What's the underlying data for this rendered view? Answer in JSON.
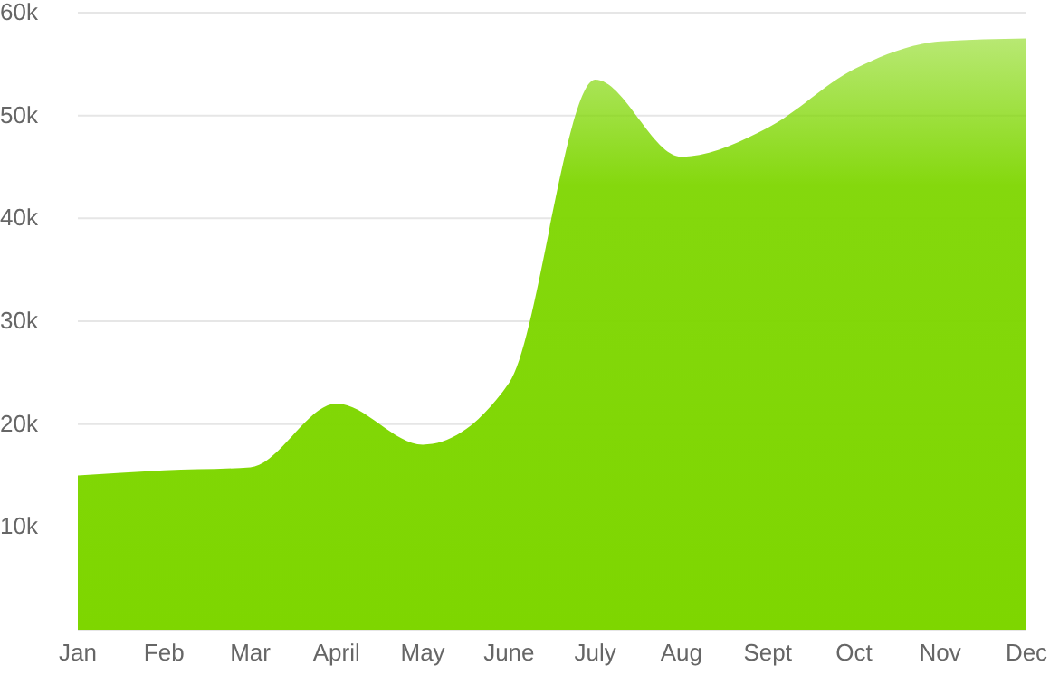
{
  "chart_data": {
    "type": "area",
    "categories": [
      "Jan",
      "Feb",
      "Mar",
      "April",
      "May",
      "June",
      "July",
      "Aug",
      "Sept",
      "Oct",
      "Nov",
      "Dec"
    ],
    "series": [
      {
        "color": "#7ed600",
        "values": [
          15000,
          15500,
          15800,
          22000,
          18000,
          24000,
          53500,
          46000,
          48800,
          54500,
          57200,
          57500
        ]
      }
    ],
    "ylim": [
      0,
      60000
    ],
    "yticks": [
      {
        "value": 10000,
        "label": "10k"
      },
      {
        "value": 20000,
        "label": "20k"
      },
      {
        "value": 30000,
        "label": "30k"
      },
      {
        "value": 40000,
        "label": "40k"
      },
      {
        "value": 50000,
        "label": "50k"
      },
      {
        "value": 60000,
        "label": "60k"
      }
    ],
    "grid": "y",
    "legend": false
  }
}
